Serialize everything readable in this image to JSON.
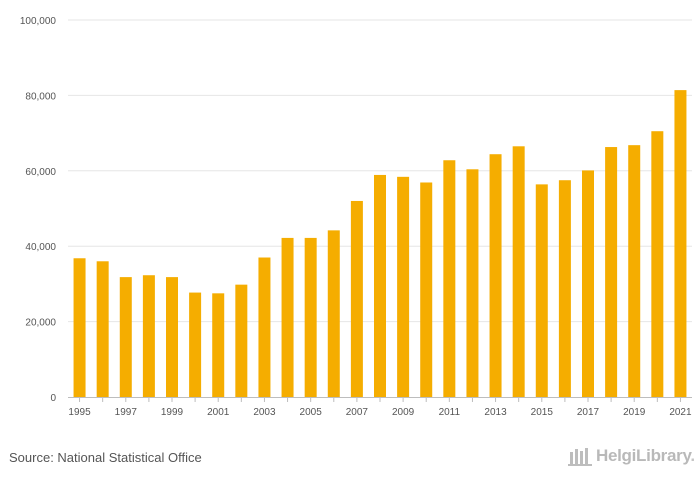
{
  "chart_data": {
    "type": "bar",
    "title": "",
    "xlabel": "",
    "ylabel": "",
    "ylim": [
      0,
      100000
    ],
    "grid": true,
    "bar_color": "#f5ad00",
    "grid_color": "#e6e6e6",
    "categories": [
      "1995",
      "1996",
      "1997",
      "1998",
      "1999",
      "2000",
      "2001",
      "2002",
      "2003",
      "2004",
      "2005",
      "2006",
      "2007",
      "2008",
      "2009",
      "2010",
      "2011",
      "2012",
      "2013",
      "2014",
      "2015",
      "2016",
      "2017",
      "2018",
      "2019",
      "2020",
      "2021"
    ],
    "values": [
      36800,
      36000,
      31800,
      32300,
      31800,
      27700,
      27500,
      29800,
      37000,
      42200,
      42200,
      44200,
      52000,
      58900,
      58400,
      56900,
      62800,
      60400,
      64400,
      66500,
      56400,
      57500,
      60100,
      66300,
      66800,
      70500,
      81400
    ],
    "x_tick_labels": [
      "1995",
      "",
      "1997",
      "",
      "1999",
      "",
      "2001",
      "",
      "2003",
      "",
      "2005",
      "",
      "2007",
      "",
      "2009",
      "",
      "2011",
      "",
      "2013",
      "",
      "2015",
      "",
      "2017",
      "",
      "2019",
      "",
      "2021"
    ],
    "y_ticks": [
      0,
      20000,
      40000,
      60000,
      80000,
      100000
    ],
    "y_tick_labels": [
      "0",
      "20,000",
      "40,000",
      "60,000",
      "80,000",
      "100,000"
    ]
  },
  "footer": {
    "source": "Source: National Statistical Office",
    "brand_name": "HelgiLibrary",
    "brand_dot": "."
  }
}
